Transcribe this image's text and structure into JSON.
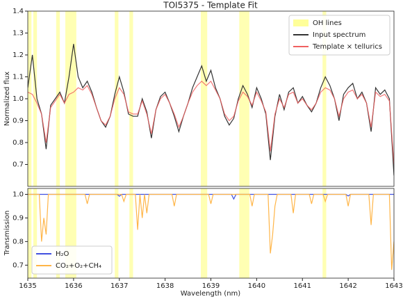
{
  "chart_data": [
    {
      "type": "line",
      "title": "TOI5375 - Template Fit",
      "ylabel": "Normalized flux",
      "xlim": [
        1635,
        1643
      ],
      "ylim": [
        0.6,
        1.4
      ],
      "yticks": [
        0.7,
        0.8,
        0.9,
        {
          "value": 1,
          "label": "1.0"
        },
        1.1,
        1.2,
        1.3,
        1.4
      ],
      "legend": "upper right",
      "span_label": "OH lines",
      "span_color": "#ffff99",
      "spans": [
        [
          1635.0,
          1635.08
        ],
        [
          1635.12,
          1635.2
        ],
        [
          1635.62,
          1635.7
        ],
        [
          1635.82,
          1636.06
        ],
        [
          1636.9,
          1636.98
        ],
        [
          1637.22,
          1637.3
        ],
        [
          1638.78,
          1638.92
        ],
        [
          1639.62,
          1639.84
        ],
        [
          1641.44,
          1641.52
        ]
      ],
      "x": [
        1635.0,
        1635.1,
        1635.2,
        1635.3,
        1635.4,
        1635.5,
        1635.6,
        1635.7,
        1635.8,
        1635.9,
        1636.0,
        1636.1,
        1636.2,
        1636.3,
        1636.4,
        1636.5,
        1636.6,
        1636.7,
        1636.8,
        1636.9,
        1637.0,
        1637.1,
        1637.2,
        1637.3,
        1637.4,
        1637.5,
        1637.6,
        1637.7,
        1637.8,
        1637.9,
        1638.0,
        1638.1,
        1638.2,
        1638.3,
        1638.4,
        1638.5,
        1638.6,
        1638.7,
        1638.8,
        1638.9,
        1639.0,
        1639.1,
        1639.2,
        1639.3,
        1639.4,
        1639.5,
        1639.6,
        1639.7,
        1639.8,
        1639.9,
        1640.0,
        1640.1,
        1640.2,
        1640.3,
        1640.4,
        1640.5,
        1640.6,
        1640.7,
        1640.8,
        1640.9,
        1641.0,
        1641.1,
        1641.2,
        1641.3,
        1641.4,
        1641.5,
        1641.6,
        1641.7,
        1641.8,
        1641.9,
        1642.0,
        1642.1,
        1642.2,
        1642.3,
        1642.4,
        1642.5,
        1642.6,
        1642.7,
        1642.8,
        1642.9,
        1643.0
      ],
      "series": [
        {
          "name": "Input spectrum",
          "color": "#333333",
          "values": [
            1.05,
            1.2,
            1.0,
            0.93,
            0.77,
            0.97,
            1.0,
            1.03,
            0.98,
            1.1,
            1.25,
            1.1,
            1.05,
            1.08,
            1.03,
            0.96,
            0.9,
            0.87,
            0.92,
            1.02,
            1.1,
            1.03,
            0.93,
            0.92,
            0.92,
            1.0,
            0.94,
            0.82,
            0.95,
            1.01,
            1.03,
            0.98,
            0.92,
            0.85,
            0.92,
            0.98,
            1.05,
            1.1,
            1.15,
            1.08,
            1.13,
            1.05,
            1.0,
            0.92,
            0.88,
            0.91,
            1.0,
            1.06,
            1.02,
            0.96,
            1.05,
            1.0,
            0.93,
            0.72,
            0.92,
            1.02,
            0.95,
            1.03,
            1.05,
            0.98,
            1.01,
            0.97,
            0.94,
            0.98,
            1.05,
            1.1,
            1.06,
            1.0,
            0.9,
            1.02,
            1.05,
            1.07,
            1.0,
            1.03,
            0.98,
            0.85,
            1.05,
            1.02,
            1.04,
            1.0,
            0.65
          ]
        },
        {
          "name": "Template × tellurics",
          "color": "#f06060",
          "values": [
            1.03,
            1.02,
            0.98,
            0.93,
            0.8,
            0.96,
            0.99,
            1.02,
            0.98,
            1.02,
            1.03,
            1.05,
            1.04,
            1.06,
            1.02,
            0.96,
            0.9,
            0.88,
            0.92,
            1.0,
            1.05,
            1.02,
            0.94,
            0.93,
            0.93,
            0.99,
            0.93,
            0.84,
            0.95,
            1.0,
            1.02,
            0.98,
            0.93,
            0.87,
            0.92,
            0.98,
            1.03,
            1.06,
            1.08,
            1.06,
            1.08,
            1.04,
            1.0,
            0.93,
            0.9,
            0.92,
            0.99,
            1.03,
            1.01,
            0.97,
            1.03,
            0.99,
            0.94,
            0.76,
            0.93,
            1.0,
            0.96,
            1.02,
            1.03,
            0.98,
            1.0,
            0.97,
            0.95,
            0.98,
            1.03,
            1.05,
            1.04,
            1.0,
            0.92,
            1.0,
            1.03,
            1.04,
            1.0,
            1.02,
            0.98,
            0.87,
            1.03,
            1.01,
            1.02,
            0.99,
            0.7
          ]
        }
      ]
    },
    {
      "type": "line",
      "xlabel": "Wavelength (nm)",
      "ylabel": "Transmission",
      "xlim": [
        1635,
        1643
      ],
      "xticks": [
        1635,
        1636,
        1637,
        1638,
        1639,
        1640,
        1641,
        1642,
        1643
      ],
      "ylim": [
        0.645,
        1.025
      ],
      "yticks": [
        0.7,
        0.8,
        0.9,
        {
          "value": 1,
          "label": "1.0"
        }
      ],
      "legend": "lower left",
      "series": [
        {
          "name": "H₂O",
          "color": "#4050e0",
          "x": [
            1635.0,
            1636.95,
            1637.0,
            1637.05,
            1639.45,
            1639.5,
            1639.55,
            1641.95,
            1642.0,
            1642.05,
            1643.0
          ],
          "values": [
            1.0,
            1.0,
            0.992,
            1.0,
            1.0,
            0.98,
            1.0,
            1.0,
            0.993,
            1.0,
            1.0
          ]
        },
        {
          "name": "CO₂+O₂+CH₄",
          "color": "#ffb547",
          "x": [
            1635.0,
            1635.25,
            1635.3,
            1635.35,
            1635.4,
            1635.45,
            1636.25,
            1636.3,
            1636.35,
            1637.05,
            1637.1,
            1637.15,
            1637.35,
            1637.4,
            1637.45,
            1637.5,
            1637.55,
            1637.6,
            1637.65,
            1637.7,
            1638.15,
            1638.2,
            1638.25,
            1638.95,
            1639.0,
            1639.05,
            1639.85,
            1639.9,
            1639.95,
            1640.25,
            1640.3,
            1640.35,
            1640.4,
            1640.45,
            1640.75,
            1640.8,
            1640.85,
            1641.15,
            1641.2,
            1641.25,
            1641.45,
            1641.5,
            1641.55,
            1641.95,
            1642.0,
            1642.05,
            1642.45,
            1642.5,
            1642.55,
            1642.9,
            1642.95,
            1643.0
          ],
          "values": [
            1.0,
            1.0,
            0.8,
            0.9,
            0.83,
            1.0,
            1.0,
            0.96,
            1.0,
            1.0,
            0.97,
            1.0,
            1.0,
            0.85,
            1.0,
            0.9,
            1.0,
            0.92,
            1.0,
            1.0,
            1.0,
            0.95,
            1.0,
            1.0,
            0.96,
            1.0,
            1.0,
            0.95,
            1.0,
            1.0,
            0.75,
            0.83,
            0.95,
            1.0,
            1.0,
            0.92,
            1.0,
            1.0,
            0.96,
            1.0,
            1.0,
            0.97,
            1.0,
            1.0,
            0.95,
            1.0,
            1.0,
            0.87,
            1.0,
            1.0,
            0.68,
            0.8
          ]
        }
      ]
    }
  ]
}
